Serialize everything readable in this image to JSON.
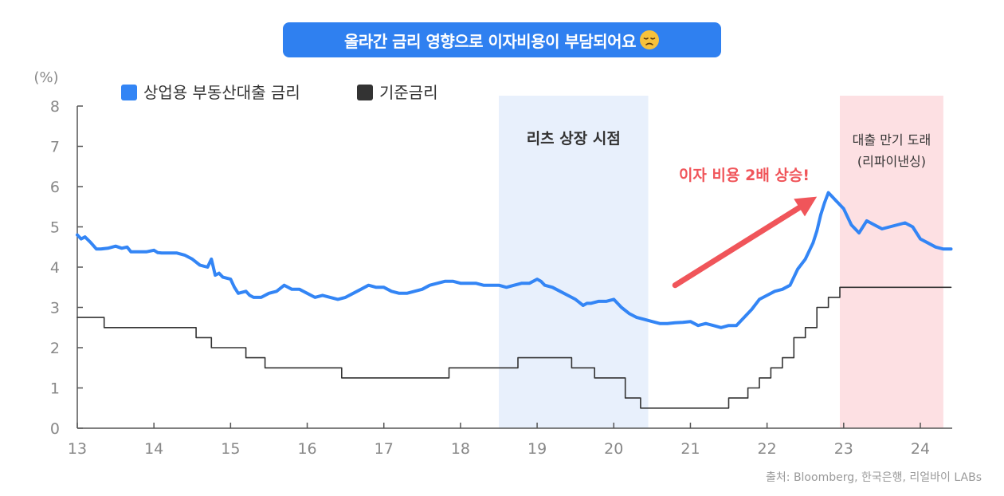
{
  "title": "올라간 금리 영향으로 이자비용이 부담되어요",
  "title_emoji": "disappointed-face-icon",
  "source": "출처: Bloomberg, 한국은행, 리얼바이 LABs",
  "colors": {
    "title_bg": "#2f80f0",
    "cre_loan": "#3385f5",
    "base_rate": "#333333",
    "reit_band": "#e8f0fc",
    "refi_band": "#fde0e3",
    "arrow": "#f0555a",
    "axis": "#555555",
    "tick_label": "#888888"
  },
  "chart_data": {
    "type": "line",
    "yunit": "(%)",
    "ylim": [
      0,
      8
    ],
    "yticks": [
      "0",
      "1",
      "2",
      "3",
      "4",
      "5",
      "6",
      "7",
      "8"
    ],
    "xlim": [
      13,
      24.4
    ],
    "xticks": [
      "13",
      "14",
      "15",
      "16",
      "17",
      "18",
      "19",
      "20",
      "21",
      "22",
      "23",
      "24"
    ],
    "legend": [
      "상업용 부동산대출 금리",
      "기준금리"
    ],
    "legend_position": "top-left",
    "grid": false,
    "bands": [
      {
        "label": "리츠 상장 시점",
        "x_start": 18.5,
        "x_end": 20.45
      },
      {
        "label": "대출 만기 도래",
        "label2": "(리파이낸싱)",
        "x_start": 22.95,
        "x_end": 24.3
      }
    ],
    "annotation": {
      "text": "이자 비용 2배 상승!",
      "from": [
        20.8,
        3.55
      ],
      "to": [
        22.65,
        5.75
      ]
    },
    "series": [
      {
        "name": "상업용 부동산대출 금리",
        "x": [
          13.0,
          13.05,
          13.1,
          13.17,
          13.25,
          13.3,
          13.4,
          13.5,
          13.58,
          13.65,
          13.7,
          13.75,
          13.8,
          13.85,
          13.9,
          14.0,
          14.05,
          14.1,
          14.2,
          14.3,
          14.4,
          14.5,
          14.6,
          14.7,
          14.75,
          14.8,
          14.85,
          14.9,
          15.0,
          15.05,
          15.1,
          15.2,
          15.25,
          15.3,
          15.4,
          15.5,
          15.6,
          15.7,
          15.75,
          15.8,
          15.9,
          16.0,
          16.05,
          16.1,
          16.2,
          16.3,
          16.4,
          16.5,
          16.6,
          16.7,
          16.8,
          16.9,
          17.0,
          17.1,
          17.2,
          17.3,
          17.4,
          17.5,
          17.6,
          17.7,
          17.8,
          17.9,
          18.0,
          18.1,
          18.2,
          18.3,
          18.4,
          18.5,
          18.6,
          18.7,
          18.8,
          18.9,
          19.0,
          19.05,
          19.1,
          19.2,
          19.3,
          19.4,
          19.5,
          19.6,
          19.65,
          19.7,
          19.8,
          19.9,
          20.0,
          20.1,
          20.2,
          20.3,
          20.4,
          20.5,
          20.6,
          20.7,
          20.8,
          20.9,
          21.0,
          21.1,
          21.2,
          21.3,
          21.4,
          21.5,
          21.6,
          21.7,
          21.8,
          21.9,
          22.0,
          22.1,
          22.2,
          22.3,
          22.4,
          22.5,
          22.6,
          22.65,
          22.7,
          22.75,
          22.8,
          22.85,
          22.9,
          22.95,
          23.0,
          23.05,
          23.1,
          23.2,
          23.3,
          23.4,
          23.5,
          23.6,
          23.7,
          23.8,
          23.9,
          24.0,
          24.1,
          24.2,
          24.3,
          24.4
        ],
        "y": [
          4.8,
          4.7,
          4.75,
          4.62,
          4.45,
          4.45,
          4.47,
          4.52,
          4.47,
          4.5,
          4.38,
          4.38,
          4.38,
          4.38,
          4.38,
          4.42,
          4.36,
          4.35,
          4.35,
          4.35,
          4.3,
          4.2,
          4.05,
          4.0,
          4.2,
          3.8,
          3.85,
          3.75,
          3.7,
          3.5,
          3.35,
          3.4,
          3.3,
          3.25,
          3.25,
          3.35,
          3.4,
          3.55,
          3.5,
          3.45,
          3.45,
          3.35,
          3.3,
          3.25,
          3.3,
          3.25,
          3.2,
          3.25,
          3.35,
          3.45,
          3.55,
          3.5,
          3.5,
          3.4,
          3.35,
          3.35,
          3.4,
          3.45,
          3.55,
          3.6,
          3.65,
          3.65,
          3.6,
          3.6,
          3.6,
          3.55,
          3.55,
          3.55,
          3.5,
          3.55,
          3.6,
          3.6,
          3.7,
          3.65,
          3.55,
          3.5,
          3.4,
          3.3,
          3.2,
          3.05,
          3.1,
          3.1,
          3.15,
          3.15,
          3.2,
          3.0,
          2.85,
          2.75,
          2.7,
          2.65,
          2.6,
          2.6,
          2.62,
          2.63,
          2.65,
          2.55,
          2.6,
          2.55,
          2.5,
          2.55,
          2.55,
          2.75,
          2.95,
          3.2,
          3.3,
          3.4,
          3.45,
          3.55,
          3.95,
          4.2,
          4.6,
          4.9,
          5.3,
          5.6,
          5.85,
          5.75,
          5.65,
          5.55,
          5.45,
          5.25,
          5.05,
          4.85,
          5.15,
          5.05,
          4.95,
          5.0,
          5.05,
          5.1,
          5.0,
          4.7,
          4.6,
          4.5,
          4.45,
          4.45
        ]
      },
      {
        "name": "기준금리",
        "x": [
          13.0,
          13.35,
          13.35,
          14.55,
          14.55,
          14.75,
          14.75,
          15.2,
          15.2,
          15.45,
          15.45,
          16.45,
          16.45,
          17.85,
          17.85,
          18.75,
          18.75,
          19.45,
          19.45,
          19.75,
          19.75,
          20.15,
          20.15,
          20.35,
          20.35,
          21.5,
          21.5,
          21.75,
          21.75,
          21.9,
          21.9,
          22.05,
          22.05,
          22.2,
          22.2,
          22.35,
          22.35,
          22.5,
          22.5,
          22.65,
          22.65,
          22.8,
          22.8,
          22.95,
          22.95,
          24.4
        ],
        "y": [
          2.75,
          2.75,
          2.5,
          2.5,
          2.25,
          2.25,
          2.0,
          2.0,
          1.75,
          1.75,
          1.5,
          1.5,
          1.25,
          1.25,
          1.5,
          1.5,
          1.75,
          1.75,
          1.5,
          1.5,
          1.25,
          1.25,
          0.75,
          0.75,
          0.5,
          0.5,
          0.75,
          0.75,
          1.0,
          1.0,
          1.25,
          1.25,
          1.5,
          1.5,
          1.75,
          1.75,
          2.25,
          2.25,
          2.5,
          2.5,
          3.0,
          3.0,
          3.25,
          3.25,
          3.5,
          3.5
        ]
      }
    ]
  }
}
